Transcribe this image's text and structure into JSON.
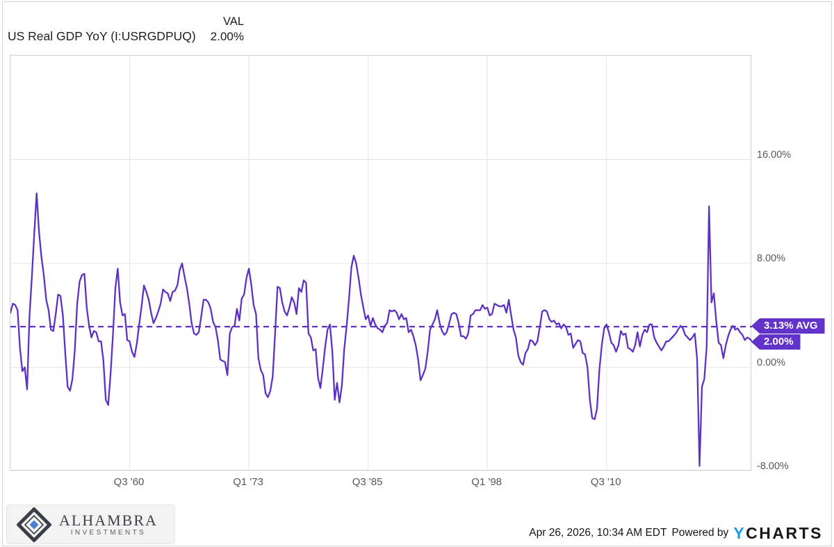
{
  "header": {
    "title": "US Real GDP YoY (I:USRGDPUQ)",
    "val_label": "VAL",
    "val_value": "2.00%"
  },
  "annotations": {
    "avg_badge": "3.13% AVG",
    "last_badge": "2.00%"
  },
  "footer": {
    "brand_name": "ALHAMBRA",
    "brand_subtitle": "INVESTMENTS",
    "timestamp": "Apr 26, 2026, 10:34 AM EDT",
    "powered_by": "Powered by",
    "ycharts_y": "Y",
    "ycharts_rest": "CHARTS"
  },
  "colors": {
    "line": "#5e30c5",
    "average_line": "#5e30c5",
    "badge": "#6133c9",
    "grid": "#e6e6e6",
    "plot_border": "#cfcfcf",
    "axis_text": "#595959",
    "ycharts_blue": "#1e9bf0",
    "brand_dark": "#3a3f47",
    "brand_blue": "#4a7fd0"
  },
  "chart_data": {
    "type": "line",
    "title": "US Real GDP YoY (I:USRGDPUQ)",
    "series_name": "US Real GDP YoY",
    "unit": "percent",
    "frequency": "quarterly",
    "x_start": "1948 Q1",
    "x_end": "2025 Q4",
    "ylim": [
      -8,
      24
    ],
    "grid": true,
    "average": 3.13,
    "last_value": 2.0,
    "y_ticks": [
      {
        "value": 16,
        "label": "16.00%"
      },
      {
        "value": 8,
        "label": "8.00%"
      },
      {
        "value": 0,
        "label": "0.00%"
      },
      {
        "value": -8,
        "label": "-8.00%"
      }
    ],
    "x_ticks": [
      {
        "index": 50,
        "label": "Q3 '60"
      },
      {
        "index": 100,
        "label": "Q1 '73"
      },
      {
        "index": 150,
        "label": "Q3 '85"
      },
      {
        "index": 200,
        "label": "Q1 '98"
      },
      {
        "index": 250,
        "label": "Q3 '10"
      }
    ],
    "values": [
      4.2,
      4.9,
      4.8,
      4.4,
      1.5,
      -0.3,
      0.0,
      -1.7,
      3.9,
      7.0,
      10.3,
      13.4,
      10.4,
      8.5,
      7.1,
      5.2,
      4.4,
      2.9,
      2.8,
      4.1,
      5.6,
      5.5,
      4.0,
      1.1,
      -1.5,
      -1.8,
      -0.9,
      1.3,
      4.9,
      6.6,
      7.1,
      7.2,
      4.6,
      3.2,
      2.3,
      2.8,
      2.7,
      2.0,
      2.0,
      0.5,
      -2.5,
      -2.9,
      -0.5,
      2.5,
      6.1,
      7.6,
      5.0,
      4.0,
      4.1,
      2.1,
      2.0,
      1.2,
      0.8,
      1.8,
      3.3,
      4.7,
      6.3,
      5.8,
      5.2,
      4.2,
      3.4,
      3.8,
      4.3,
      4.9,
      6.0,
      5.8,
      5.7,
      5.1,
      5.8,
      5.9,
      6.3,
      7.5,
      8.0,
      7.0,
      6.1,
      4.9,
      3.4,
      2.6,
      2.5,
      2.7,
      3.9,
      5.2,
      5.2,
      5.0,
      4.5,
      3.5,
      3.1,
      2.1,
      0.6,
      0.5,
      0.4,
      -0.6,
      2.6,
      3.1,
      3.2,
      4.5,
      3.6,
      5.3,
      5.6,
      6.9,
      7.6,
      6.4,
      4.8,
      4.1,
      0.7,
      -0.2,
      -0.6,
      -2.0,
      -2.3,
      -1.8,
      -0.7,
      2.6,
      6.2,
      6.1,
      5.0,
      4.3,
      4.0,
      4.6,
      5.4,
      5.0,
      4.1,
      6.1,
      5.8,
      6.7,
      6.5,
      2.6,
      2.3,
      1.3,
      1.4,
      -0.8,
      -1.6,
      -0.1,
      1.6,
      2.9,
      3.3,
      1.2,
      -2.5,
      -1.2,
      -2.7,
      -1.4,
      1.4,
      3.2,
      5.3,
      7.7,
      8.6,
      8.0,
      6.9,
      5.6,
      4.6,
      3.7,
      4.0,
      3.2,
      3.8,
      3.3,
      3.0,
      2.9,
      2.7,
      3.2,
      3.4,
      4.4,
      4.3,
      4.4,
      4.2,
      3.7,
      4.1,
      3.7,
      3.8,
      2.7,
      2.9,
      2.4,
      1.7,
      0.6,
      -1.0,
      -0.6,
      -0.1,
      1.2,
      2.9,
      3.3,
      3.7,
      4.4,
      3.4,
      2.8,
      2.5,
      2.7,
      3.4,
      4.1,
      4.2,
      4.1,
      3.4,
      2.4,
      2.4,
      2.2,
      2.6,
      4.0,
      4.1,
      4.4,
      4.4,
      4.4,
      4.8,
      4.5,
      4.6,
      4.0,
      4.1,
      4.9,
      4.8,
      4.7,
      4.7,
      4.8,
      4.2,
      5.2,
      4.0,
      2.9,
      2.3,
      0.9,
      0.4,
      0.2,
      1.1,
      1.4,
      2.1,
      2.0,
      1.7,
      2.0,
      3.1,
      4.3,
      4.4,
      4.3,
      3.7,
      3.5,
      3.6,
      3.3,
      3.4,
      3.0,
      3.3,
      3.1,
      2.5,
      2.6,
      1.5,
      1.8,
      2.1,
      2.0,
      1.1,
      1.0,
      0.0,
      -2.5,
      -3.9,
      -4.0,
      -3.2,
      -0.2,
      1.7,
      3.0,
      3.3,
      2.7,
      1.9,
      1.7,
      1.2,
      1.7,
      2.8,
      2.5,
      2.6,
      1.5,
      1.4,
      1.2,
      1.7,
      2.7,
      1.6,
      2.5,
      2.9,
      2.7,
      3.3,
      3.3,
      2.3,
      1.9,
      1.6,
      1.3,
      1.6,
      2.0,
      2.0,
      2.2,
      2.4,
      2.6,
      2.9,
      3.2,
      3.0,
      2.5,
      2.3,
      2.1,
      2.3,
      2.6,
      0.6,
      -7.6,
      -1.5,
      -0.9,
      1.6,
      12.4,
      5.0,
      5.7,
      3.6,
      1.9,
      1.7,
      0.7,
      1.7,
      2.4,
      2.9,
      3.2,
      2.9,
      3.0,
      2.7,
      2.5,
      2.1,
      2.3,
      2.2,
      2.0
    ]
  }
}
